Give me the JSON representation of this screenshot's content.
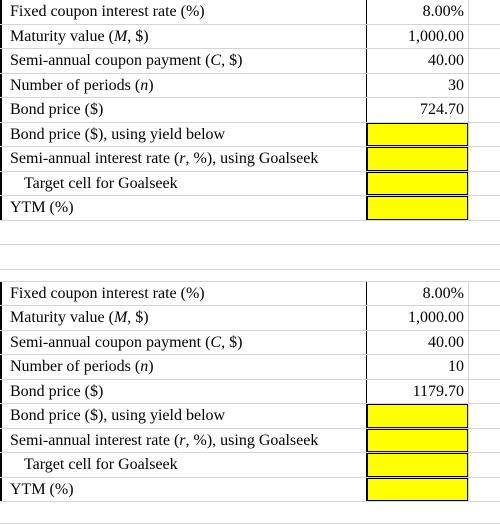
{
  "block1": {
    "rows": [
      {
        "label": "Fixed coupon interest rate (%)",
        "value": "8.00%"
      },
      {
        "label_pre": "Maturity value (",
        "var": "M",
        "label_post": ", $)",
        "value": "1,000.00"
      },
      {
        "label_pre": "Semi-annual coupon payment (",
        "var": "C",
        "label_post": ", $)",
        "value": "40.00"
      },
      {
        "label_pre": "Number of periods (",
        "var": "n",
        "label_post": ")",
        "value": "30"
      },
      {
        "label": "Bond price ($)",
        "value": "724.70"
      },
      {
        "label": "Bond price ($), using yield below",
        "value": ""
      },
      {
        "label_pre": "Semi-annual interest rate (",
        "var": "r",
        "label_post": ", %), using Goalseek",
        "value": ""
      },
      {
        "label": "Target cell for Goalseek",
        "value": ""
      },
      {
        "label": "YTM (%)",
        "value": ""
      }
    ]
  },
  "block2": {
    "rows": [
      {
        "label": "Fixed coupon interest rate (%)",
        "value": "8.00%"
      },
      {
        "label_pre": "Maturity value (",
        "var": "M",
        "label_post": ", $)",
        "value": "1,000.00"
      },
      {
        "label_pre": "Semi-annual coupon payment (",
        "var": "C",
        "label_post": ", $)",
        "value": "40.00"
      },
      {
        "label_pre": "Number of periods (",
        "var": "n",
        "label_post": ")",
        "value": "10"
      },
      {
        "label": "Bond price ($)",
        "value": "1179.70"
      },
      {
        "label": "Bond price ($), using yield below",
        "value": ""
      },
      {
        "label_pre": "Semi-annual interest rate (",
        "var": "r",
        "label_post": ", %), using Goalseek",
        "value": ""
      },
      {
        "label": "Target cell for Goalseek",
        "value": ""
      },
      {
        "label": "YTM (%)",
        "value": ""
      }
    ]
  },
  "colors": {
    "input_fill": "#ffff00",
    "gridline": "#d4d4d4"
  }
}
